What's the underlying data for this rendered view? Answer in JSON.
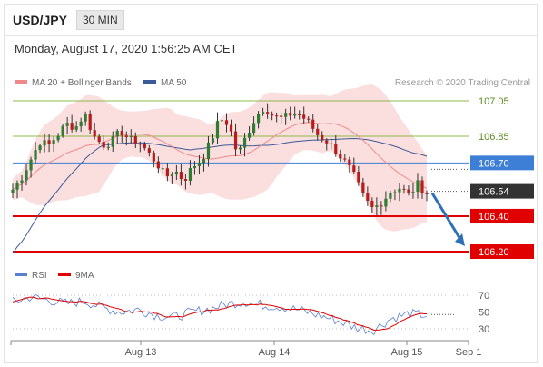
{
  "header": {
    "symbol": "USD/JPY",
    "timeframe": "30 MIN"
  },
  "timestamp": "Monday, August 17, 2020 1:56:25 AM CET",
  "credit": "Research © 2020 Trading Central",
  "colors": {
    "band": "#f8c8c8",
    "ma20": "#f08a8a",
    "ma50": "#3c5a9a",
    "resistance": "#8dbb4a",
    "current": "#3d7fd6",
    "support": "#e00000",
    "arrow": "#2f6fb8",
    "rsi": "#5b7fd0",
    "rsi_ma": "#e00000"
  },
  "chart_data": [
    {
      "type": "candlestick",
      "legend": [
        "MA 20 + Bollinger Bands",
        "MA 50"
      ],
      "legend_position": "top-left",
      "ylim": [
        106.15,
        107.08
      ],
      "x_ticks": [
        "Aug 13",
        "Aug 14",
        "Aug 15",
        "Sep 1"
      ],
      "levels": [
        {
          "value": 107.05,
          "label": "107.05",
          "kind": "resistance"
        },
        {
          "value": 106.85,
          "label": "106.85",
          "kind": "resistance"
        },
        {
          "value": 106.7,
          "label": "106.70",
          "kind": "pivot"
        },
        {
          "value": 106.54,
          "label": "106.54",
          "kind": "last"
        },
        {
          "value": 106.4,
          "label": "106.40",
          "kind": "support"
        },
        {
          "value": 106.2,
          "label": "106.20",
          "kind": "support"
        }
      ],
      "close_path": [
        [
          0,
          106.55
        ],
        [
          10,
          106.62
        ],
        [
          20,
          106.72
        ],
        [
          30,
          106.82
        ],
        [
          40,
          106.8
        ],
        [
          50,
          106.86
        ],
        [
          60,
          106.92
        ],
        [
          70,
          106.9
        ],
        [
          80,
          106.98
        ],
        [
          90,
          106.85
        ],
        [
          100,
          106.8
        ],
        [
          110,
          106.82
        ],
        [
          120,
          106.88
        ],
        [
          130,
          106.83
        ],
        [
          140,
          106.82
        ],
        [
          150,
          106.76
        ],
        [
          160,
          106.7
        ],
        [
          170,
          106.62
        ],
        [
          180,
          106.66
        ],
        [
          190,
          106.6
        ],
        [
          200,
          106.68
        ],
        [
          210,
          106.72
        ],
        [
          220,
          106.82
        ],
        [
          230,
          106.95
        ],
        [
          240,
          106.92
        ],
        [
          250,
          106.74
        ],
        [
          260,
          106.86
        ],
        [
          270,
          106.96
        ],
        [
          280,
          107.02
        ],
        [
          290,
          106.96
        ],
        [
          300,
          106.95
        ],
        [
          310,
          106.98
        ],
        [
          320,
          106.97
        ],
        [
          330,
          106.92
        ],
        [
          340,
          106.85
        ],
        [
          350,
          106.82
        ],
        [
          360,
          106.76
        ],
        [
          370,
          106.7
        ],
        [
          380,
          106.62
        ],
        [
          390,
          106.5
        ],
        [
          400,
          106.44
        ],
        [
          410,
          106.48
        ],
        [
          420,
          106.54
        ],
        [
          430,
          106.56
        ],
        [
          440,
          106.52
        ],
        [
          450,
          106.58
        ],
        [
          460,
          106.53
        ]
      ],
      "forecast": {
        "from": 106.54,
        "to": 106.2
      }
    },
    {
      "type": "line",
      "legend": [
        "RSI",
        "9MA"
      ],
      "legend_position": "top-left",
      "ylim": [
        20,
        80
      ],
      "y_ticks": [
        70,
        50,
        30
      ],
      "rsi_path": [
        [
          0,
          62
        ],
        [
          20,
          68
        ],
        [
          40,
          64
        ],
        [
          60,
          60
        ],
        [
          80,
          63
        ],
        [
          100,
          55
        ],
        [
          120,
          50
        ],
        [
          140,
          53
        ],
        [
          160,
          46
        ],
        [
          180,
          44
        ],
        [
          200,
          50
        ],
        [
          220,
          54
        ],
        [
          240,
          60
        ],
        [
          260,
          62
        ],
        [
          280,
          58
        ],
        [
          300,
          56
        ],
        [
          320,
          52
        ],
        [
          340,
          46
        ],
        [
          360,
          40
        ],
        [
          380,
          32
        ],
        [
          400,
          28
        ],
        [
          420,
          42
        ],
        [
          440,
          48
        ],
        [
          460,
          46
        ]
      ]
    }
  ]
}
